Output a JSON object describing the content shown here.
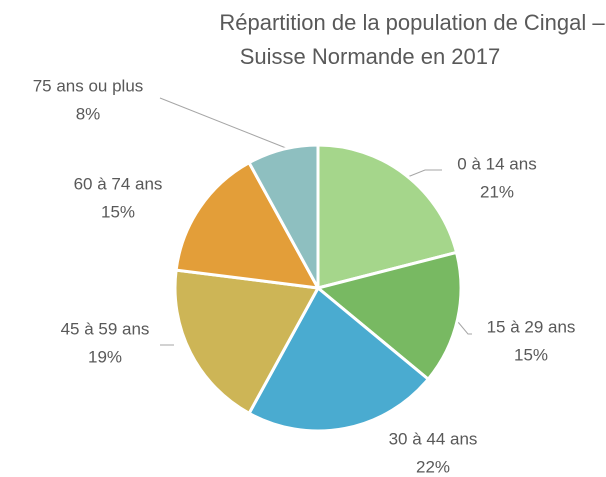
{
  "chart_data": {
    "type": "pie",
    "title": [
      "Répartition de la population de Cingal –",
      "Suisse Normande en 2017"
    ],
    "categories": [
      "0 à 14 ans",
      "15 à 29 ans",
      "30 à 44 ans",
      "45 à 59 ans",
      "60 à 74 ans",
      "75 ans ou plus"
    ],
    "values": [
      21,
      15,
      22,
      19,
      15,
      8
    ],
    "value_labels": [
      "21%",
      "15%",
      "22%",
      "19%",
      "15%",
      "8%"
    ],
    "colors": [
      "#a5d68b",
      "#78b962",
      "#4aabd0",
      "#cdb556",
      "#e39e39",
      "#8ebfc0"
    ]
  }
}
